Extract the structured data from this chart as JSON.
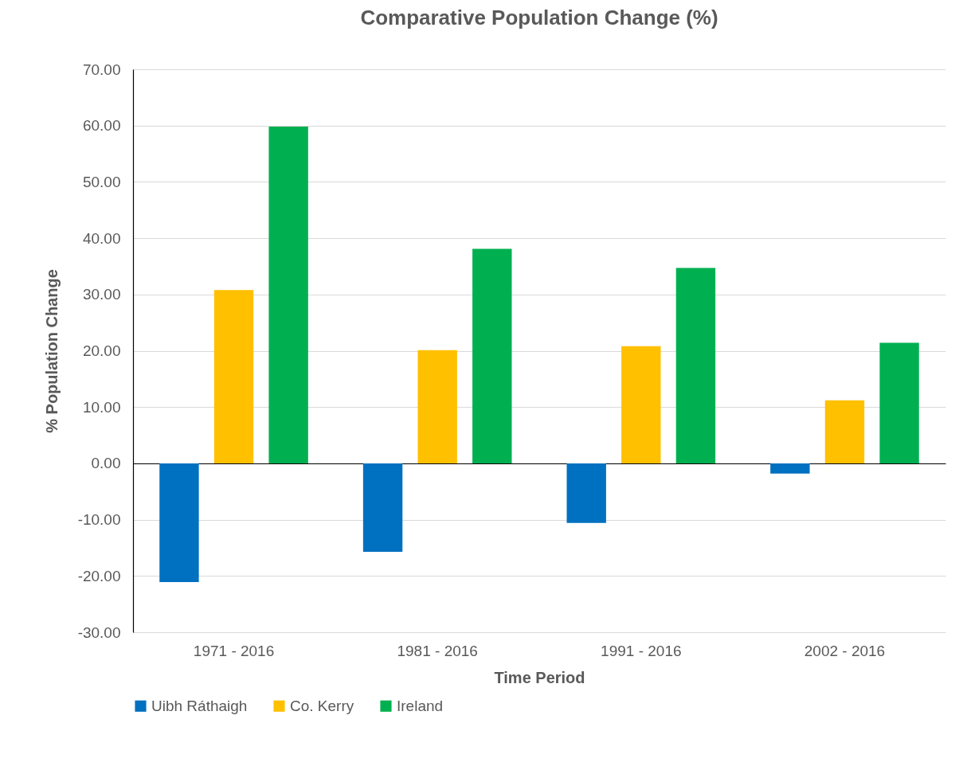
{
  "chart_data": {
    "type": "bar",
    "title": "Comparative Population Change (%)",
    "xlabel": "Time Period",
    "ylabel": "% Population Change",
    "categories": [
      "1971 - 2016",
      "1981 - 2016",
      "1991 - 2016",
      "2002 - 2016"
    ],
    "series": [
      {
        "name": "Uibh Ráthaigh",
        "color": "#0070c0",
        "values": [
          -21.1,
          -15.7,
          -10.6,
          -1.8
        ]
      },
      {
        "name": "Co. Kerry",
        "color": "#ffc000",
        "values": [
          30.8,
          20.1,
          20.8,
          11.2
        ]
      },
      {
        "name": "Ireland",
        "color": "#00b050",
        "values": [
          59.8,
          38.1,
          34.7,
          21.4
        ]
      }
    ],
    "ylim": [
      -30,
      70
    ],
    "yticks": [
      {
        "value": -30,
        "label": "-30.00"
      },
      {
        "value": -20,
        "label": "-20.00"
      },
      {
        "value": -10,
        "label": "-10.00"
      },
      {
        "value": 0,
        "label": "0.00"
      },
      {
        "value": 10,
        "label": "10.00"
      },
      {
        "value": 20,
        "label": "20.00"
      },
      {
        "value": 30,
        "label": "30.00"
      },
      {
        "value": 40,
        "label": "40.00"
      },
      {
        "value": 50,
        "label": "50.00"
      },
      {
        "value": 60,
        "label": "60.00"
      },
      {
        "value": 70,
        "label": "70.00"
      }
    ],
    "grid": "y",
    "legend": "bottom"
  }
}
